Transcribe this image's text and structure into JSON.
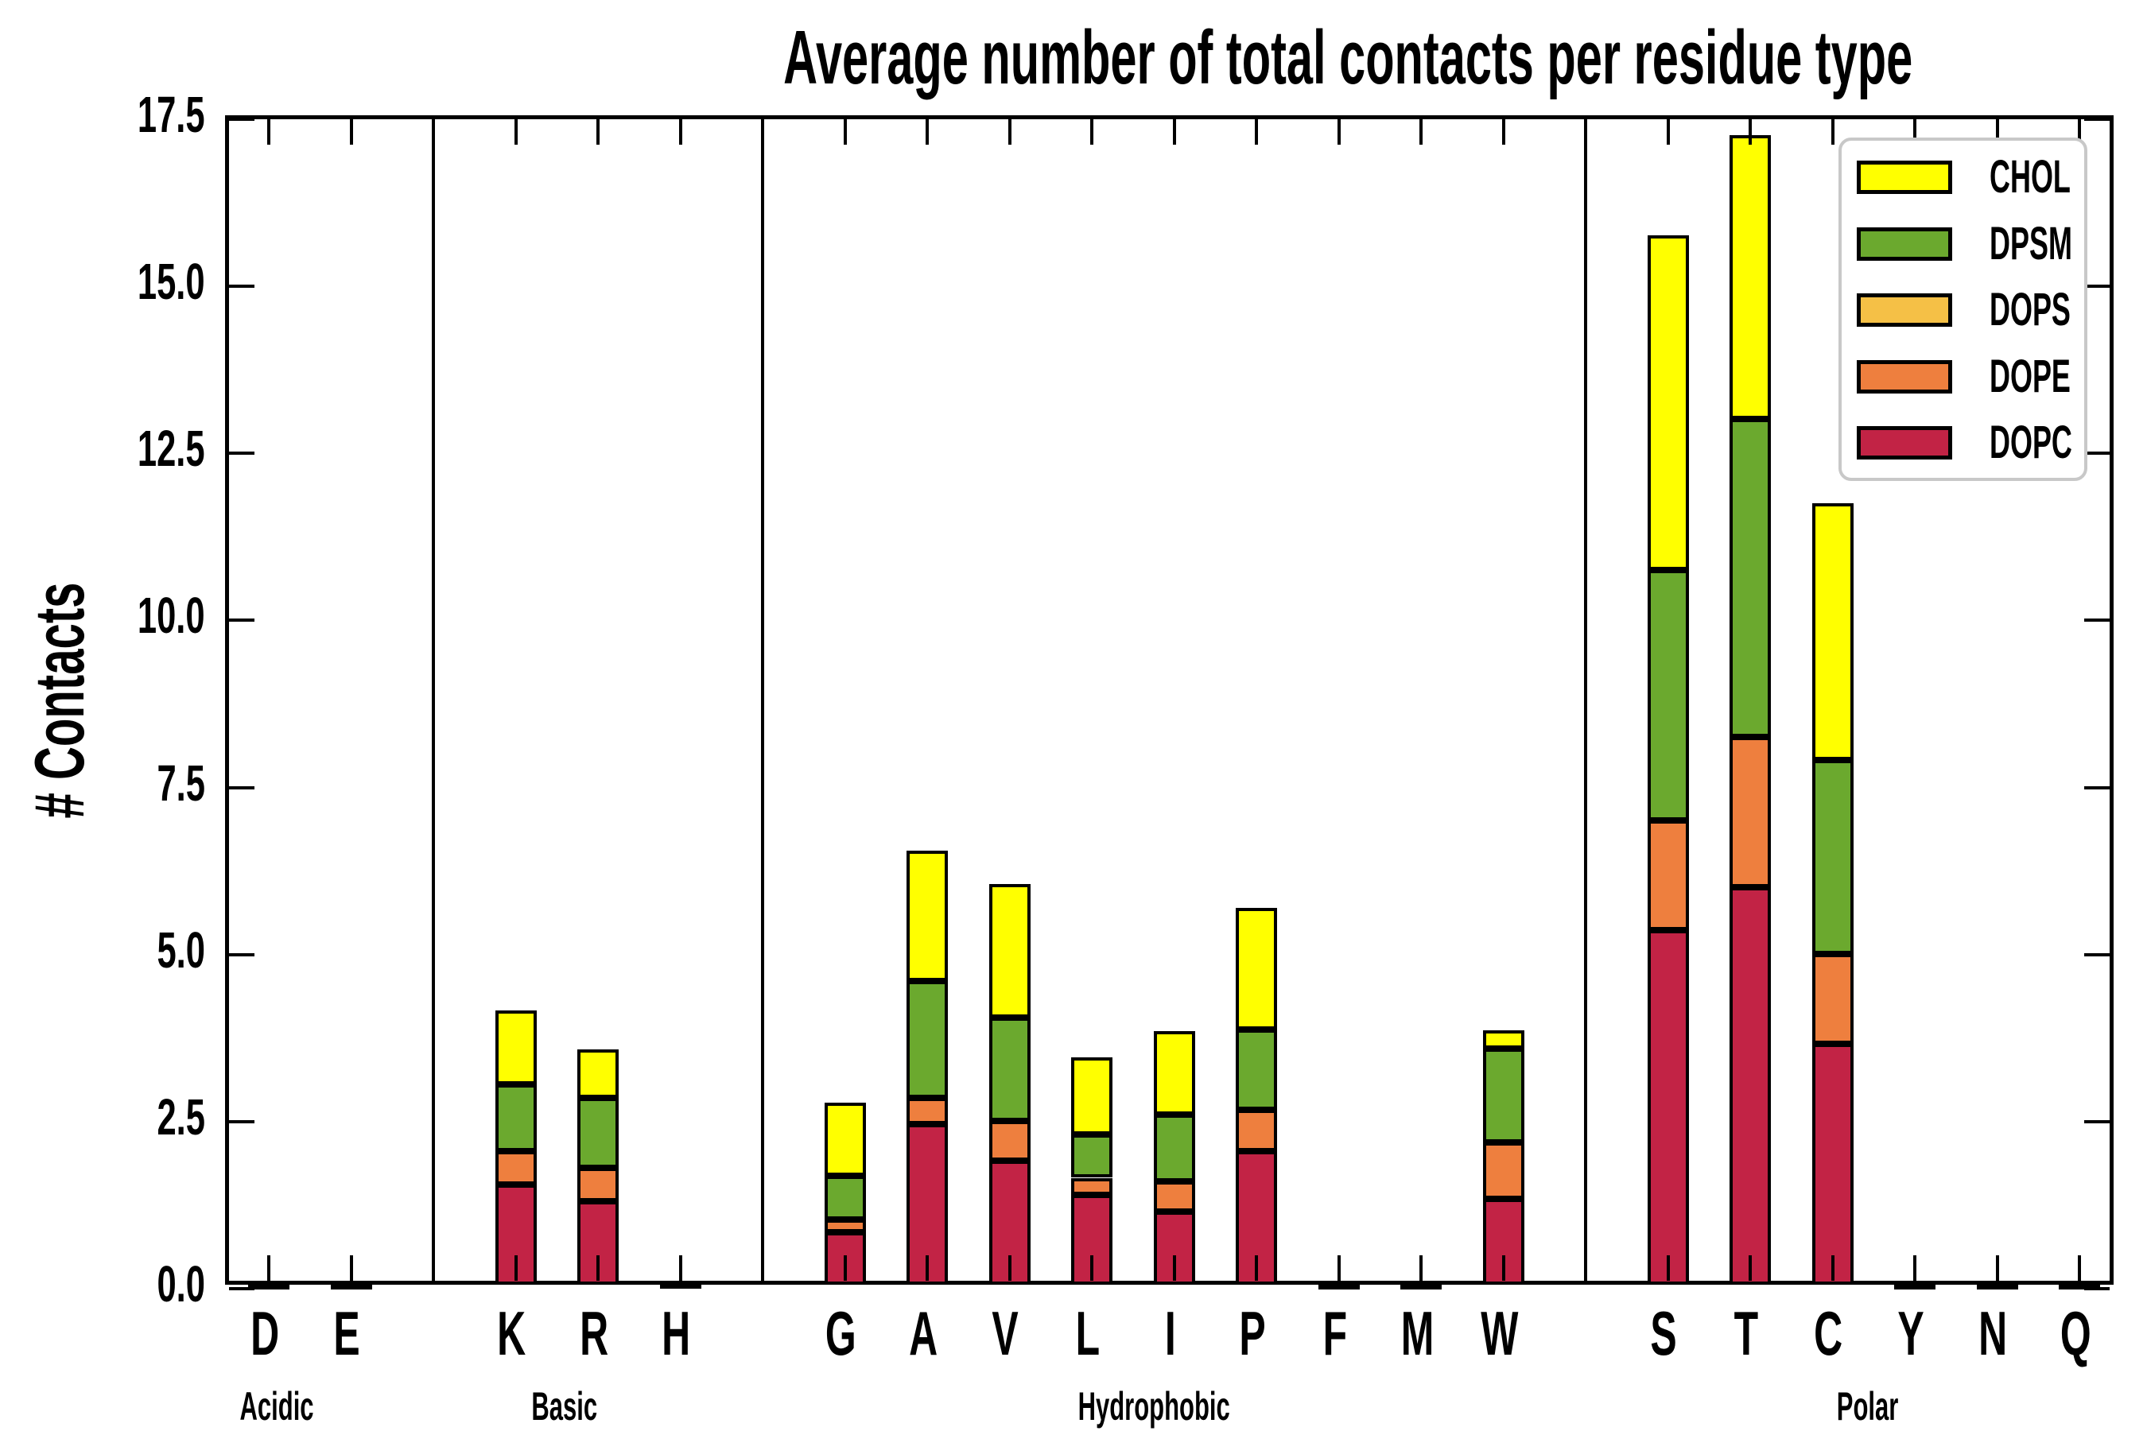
{
  "chart_data": {
    "type": "bar",
    "stacked": true,
    "title": "Average number of total contacts per residue type",
    "ylabel": "# Contacts",
    "xlabel": "",
    "ylim": [
      0,
      17.5
    ],
    "yticks": [
      {
        "value": 0.0,
        "label": "0.0"
      },
      {
        "value": 2.5,
        "label": "2.5"
      },
      {
        "value": 5.0,
        "label": "5.0"
      },
      {
        "value": 7.5,
        "label": "7.5"
      },
      {
        "value": 10.0,
        "label": "10.0"
      },
      {
        "value": 12.5,
        "label": "12.5"
      },
      {
        "value": 15.0,
        "label": "15.0"
      },
      {
        "value": 17.5,
        "label": "17.5"
      }
    ],
    "grid": false,
    "legend_position": "upper right",
    "legend_order_top_to_bottom": [
      "CHOL",
      "DPSM",
      "DOPS",
      "DOPE",
      "DOPC"
    ],
    "groups": [
      {
        "label": "Acidic",
        "categories": [
          "D",
          "E"
        ]
      },
      {
        "label": "Basic",
        "categories": [
          "K",
          "R",
          "H"
        ]
      },
      {
        "label": "Hydrophobic",
        "categories": [
          "G",
          "A",
          "V",
          "L",
          "I",
          "P",
          "F",
          "M",
          "W"
        ]
      },
      {
        "label": "Polar",
        "categories": [
          "S",
          "T",
          "C",
          "Y",
          "N",
          "Q"
        ]
      }
    ],
    "categories": [
      "D",
      "E",
      "K",
      "R",
      "H",
      "G",
      "A",
      "V",
      "L",
      "I",
      "P",
      "F",
      "M",
      "W",
      "S",
      "T",
      "C",
      "Y",
      "N",
      "Q"
    ],
    "series": [
      {
        "name": "DOPC",
        "color": "#C22345",
        "values": [
          0.02,
          0.02,
          1.5,
          1.25,
          0.03,
          0.78,
          2.4,
          1.85,
          1.35,
          1.1,
          2.0,
          0.02,
          0.02,
          1.28,
          5.3,
          5.95,
          3.6,
          0.02,
          0.02,
          0.02
        ]
      },
      {
        "name": "DOPE",
        "color": "#EE7F3E",
        "values": [
          0,
          0,
          0.5,
          0.5,
          0,
          0.2,
          0.4,
          0.6,
          0.25,
          0.45,
          0.62,
          0,
          0,
          0.85,
          1.65,
          2.25,
          1.35,
          0,
          0,
          0
        ]
      },
      {
        "name": "DOPS",
        "color": "#F5C046",
        "values": [
          0,
          0,
          0,
          0,
          0,
          0,
          0,
          0,
          0,
          0,
          0,
          0,
          0,
          0,
          0,
          0,
          0,
          0,
          0,
          0
        ]
      },
      {
        "name": "DPSM",
        "color": "#6BA92E",
        "values": [
          0,
          0,
          1.0,
          1.05,
          0,
          0.65,
          1.75,
          1.55,
          0.65,
          1.0,
          1.2,
          0,
          0,
          1.4,
          3.75,
          4.75,
          2.9,
          0,
          0,
          0
        ]
      },
      {
        "name": "CHOL",
        "color": "#FFFF00",
        "values": [
          0,
          0,
          1.1,
          0.72,
          0,
          1.1,
          1.95,
          2.0,
          1.15,
          1.25,
          1.82,
          0,
          0,
          0.28,
          5.0,
          4.25,
          3.85,
          0,
          0,
          0
        ]
      }
    ],
    "totals": {
      "D": 0.02,
      "E": 0.02,
      "K": 4.1,
      "R": 3.52,
      "H": 0.03,
      "G": 2.73,
      "A": 6.5,
      "V": 6.0,
      "L": 3.4,
      "I": 3.8,
      "P": 5.64,
      "F": 0.02,
      "M": 0.02,
      "W": 3.81,
      "S": 15.7,
      "T": 17.2,
      "C": 11.7,
      "Y": 0.02,
      "N": 0.02,
      "Q": 0.02
    }
  }
}
